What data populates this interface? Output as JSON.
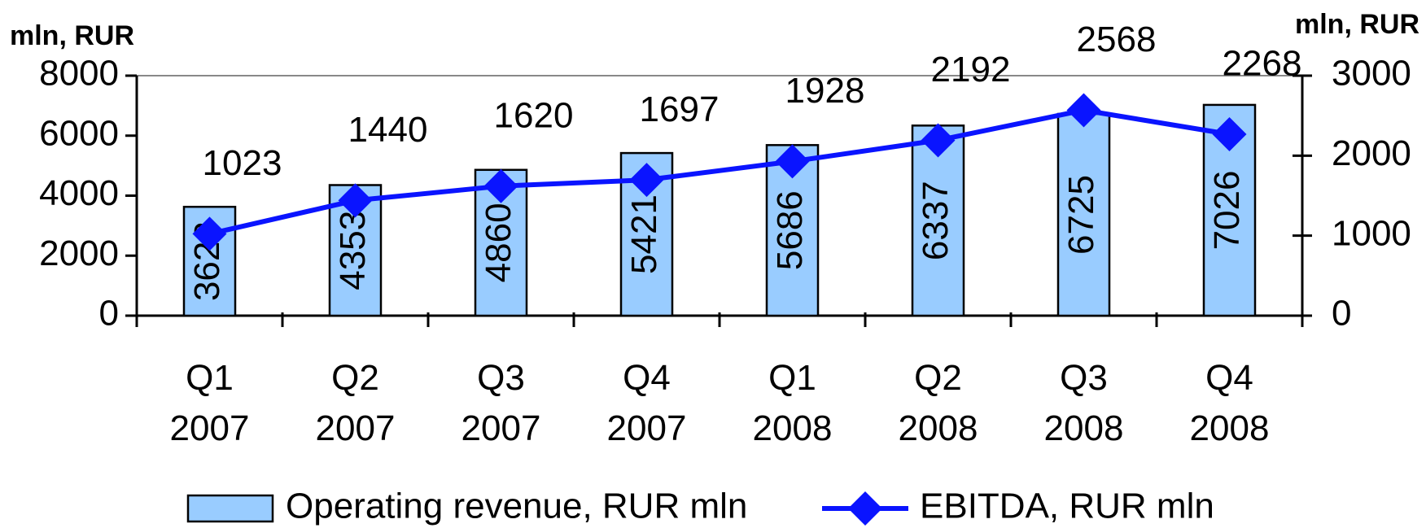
{
  "chart_data": {
    "type": "bar-line",
    "y_label": "mln, RUR",
    "y2_label": "mln, RUR",
    "categories": [
      "Q1\n2007",
      "Q2\n2007",
      "Q3\n2007",
      "Q4\n2007",
      "Q1\n2008",
      "Q2\n2008",
      "Q3\n2008",
      "Q4\n2008"
    ],
    "series": [
      {
        "name": "Operating revenue, RUR mln",
        "type": "bar",
        "color": "#99ccff",
        "values": [
          3628,
          4353,
          4860,
          5421,
          5686,
          6337,
          6725,
          7026
        ]
      },
      {
        "name": "EBITDA, RUR mln",
        "type": "line",
        "axis": "y2",
        "color": "#0a14ff",
        "values": [
          1023,
          1440,
          1620,
          1697,
          1928,
          2192,
          2568,
          2268
        ]
      }
    ],
    "ylim": [
      0,
      8000
    ],
    "yticks": [
      0,
      2000,
      4000,
      6000,
      8000
    ],
    "y2lim": [
      0,
      3000
    ],
    "y2ticks": [
      0,
      1000,
      2000,
      3000
    ],
    "legend": "bottom"
  }
}
